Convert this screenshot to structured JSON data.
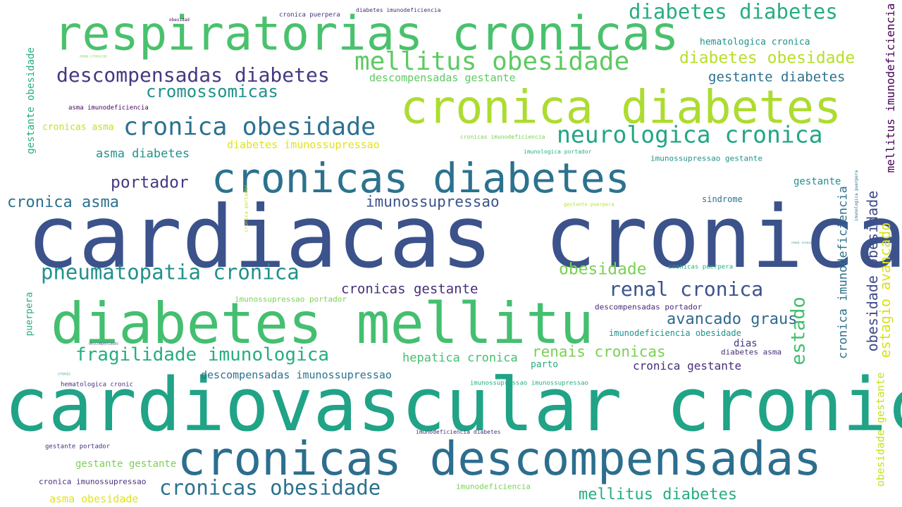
{
  "palette": {
    "navy": "#3b528b",
    "teal": "#2c728e",
    "green": "#21918c",
    "mint": "#27ad81",
    "lime": "#5ec962",
    "yellowgreen": "#addc30",
    "yellow": "#e0e31b",
    "purple": "#472d7b",
    "indigo": "#443983",
    "deep": "#440154"
  },
  "words": [
    {
      "text": "cardiacas cronicas",
      "color": "#3b528b"
    },
    {
      "text": "cardiovascular cronica",
      "color": "#20a386"
    },
    {
      "text": "diabetes mellitu",
      "color": "#44bf70"
    },
    {
      "text": "respiratorias cronicas",
      "color": "#4ac16d"
    },
    {
      "text": "cronica diabetes",
      "color": "#addc30"
    },
    {
      "text": "cronicas diabetes",
      "color": "#2c728e"
    },
    {
      "text": "cronicas descompensadas",
      "color": "#2c6e8e"
    },
    {
      "text": "diabetes diabetes",
      "color": "#27ad81"
    },
    {
      "text": "mellitus obesidade",
      "color": "#5ec962"
    },
    {
      "text": "descompensadas diabetes",
      "color": "#443983"
    },
    {
      "text": "cronica obesidade",
      "color": "#2c728e"
    },
    {
      "text": "neurologica cronica",
      "color": "#21a685"
    },
    {
      "text": "pneumatopatia cronica",
      "color": "#21918c"
    },
    {
      "text": "cromossomicas",
      "color": "#21918c"
    },
    {
      "text": "diabetes obesidade",
      "color": "#b8de29"
    },
    {
      "text": "gestante diabetes",
      "color": "#2c728e"
    },
    {
      "text": "descompensadas gestante",
      "color": "#5ec962"
    },
    {
      "text": "hematologica cronica",
      "color": "#21918c"
    },
    {
      "text": "mellitus imunodeficiencia",
      "color": "#440154"
    },
    {
      "text": "gestante obesidade",
      "color": "#27ad81"
    },
    {
      "text": "asma imunodeficiencia",
      "color": "#440154"
    },
    {
      "text": "cronicas asma",
      "color": "#c2df23"
    },
    {
      "text": "asma diabetes",
      "color": "#21918c"
    },
    {
      "text": "diabetes imunossupressao",
      "color": "#e0e31b"
    },
    {
      "text": "portador",
      "color": "#443983"
    },
    {
      "text": "cronica asma",
      "color": "#2c728e"
    },
    {
      "text": "imunossupressao",
      "color": "#3b528b"
    },
    {
      "text": "fragilidade imunologica",
      "color": "#27ad81"
    },
    {
      "text": "renal cronica",
      "color": "#3b528b"
    },
    {
      "text": "obesidade",
      "color": "#7ad151"
    },
    {
      "text": "cronicas gestante",
      "color": "#472d7b"
    },
    {
      "text": "avancado graus",
      "color": "#31688e"
    },
    {
      "text": "estado",
      "color": "#44bf70"
    },
    {
      "text": "renais cronicas",
      "color": "#7ad151"
    },
    {
      "text": "hepatica cronica",
      "color": "#44bf70"
    },
    {
      "text": "descompensadas imunossupressao",
      "color": "#2c728e"
    },
    {
      "text": "cronicas obesidade",
      "color": "#2c728e"
    },
    {
      "text": "mellitus diabetes",
      "color": "#27ad81"
    },
    {
      "text": "cronica imunodeficiencia",
      "color": "#2c728e"
    },
    {
      "text": "obesidade obesidade",
      "color": "#3e4a89"
    },
    {
      "text": "estagio avancado",
      "color": "#d8e219"
    },
    {
      "text": "obesidade gestante",
      "color": "#c8e020"
    },
    {
      "text": "imunologica puerpera",
      "color": "#2c728e"
    },
    {
      "text": "imunossupressao gestante",
      "color": "#21918c"
    },
    {
      "text": "gestante",
      "color": "#21918c"
    },
    {
      "text": "sindrome",
      "color": "#2c728e"
    },
    {
      "text": "cronicas puerpera",
      "color": "#27ad81"
    },
    {
      "text": "descompensadas portador",
      "color": "#472d7b"
    },
    {
      "text": "imunodeficiencia obesidade",
      "color": "#21918c"
    },
    {
      "text": "dias",
      "color": "#443983"
    },
    {
      "text": "diabetes asma",
      "color": "#472d7b"
    },
    {
      "text": "parto",
      "color": "#27ad81"
    },
    {
      "text": "cronica gestante",
      "color": "#472d7b"
    },
    {
      "text": "imunossupressao portador",
      "color": "#7ad151"
    },
    {
      "text": "imunossupressao imunossupressao",
      "color": "#27ad81"
    },
    {
      "text": "imunodeficiencia diabetes",
      "color": "#472d7b"
    },
    {
      "text": "gestante portador",
      "color": "#472d7b"
    },
    {
      "text": "gestante gestante",
      "color": "#7ad151"
    },
    {
      "text": "cronica imunossupressao",
      "color": "#472d7b"
    },
    {
      "text": "asma obesidade",
      "color": "#e0e31b"
    },
    {
      "text": "imunodeficiencia",
      "color": "#7ad151"
    },
    {
      "text": "hematologica cronic",
      "color": "#472d7b"
    },
    {
      "text": "puerpera",
      "color": "#27ad81"
    },
    {
      "text": "cronica portador",
      "color": "#c2df23"
    },
    {
      "text": "gestante puerpera",
      "color": "#b8de29"
    },
    {
      "text": "cronicas imunodeficiencia",
      "color": "#7ad151"
    },
    {
      "text": "imunologica portador",
      "color": "#27ad81"
    },
    {
      "text": "cronica puerpera",
      "color": "#472d7b"
    },
    {
      "text": "diabetes imunodeficiencia",
      "color": "#472d7b"
    },
    {
      "text": "obesidad",
      "color": "#440154"
    },
    {
      "text": "asma cronicas",
      "color": "#7ad151"
    },
    {
      "text": "renal cronic",
      "color": "#21918c"
    },
    {
      "text": "cronic",
      "color": "#21918c"
    },
    {
      "text": "descompensadas",
      "color": "#443983"
    }
  ]
}
